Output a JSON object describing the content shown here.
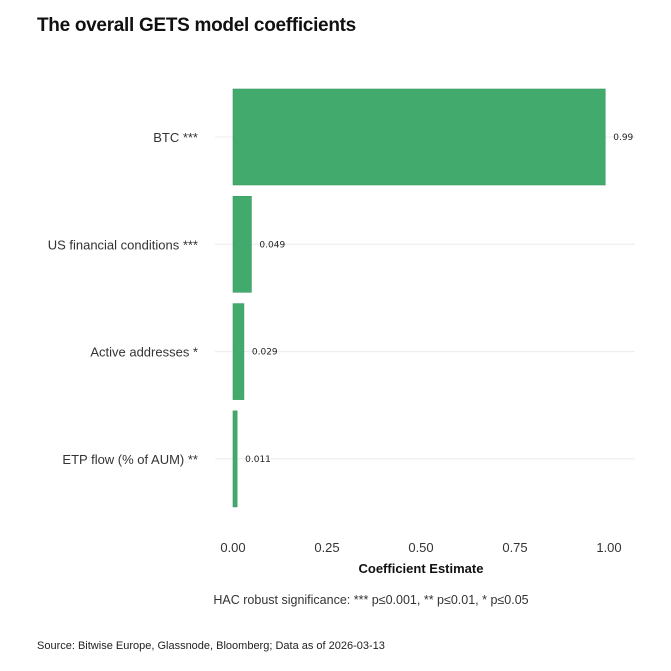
{
  "title": "The overall GETS model coefficients",
  "source": "Source: Bitwise Europe, Glassnode, Bloomberg; Data as of 2026-03-13",
  "chart_data": {
    "type": "bar",
    "orientation": "horizontal",
    "title": "The overall GETS model coefficients",
    "categories": [
      "BTC ***",
      "US financial conditions ***",
      "Active addresses *",
      "ETP flow (% of AUM) **"
    ],
    "values": [
      0.99,
      0.049,
      0.029,
      0.011
    ],
    "data_labels": [
      "0.99",
      "0.049",
      "0.029",
      "0.011"
    ],
    "xlabel": "Coefficient Estimate",
    "ylabel": "",
    "xlim": [
      0,
      1.0
    ],
    "xticks": [
      "0.00",
      "0.25",
      "0.50",
      "0.75",
      "1.00"
    ],
    "note": "HAC robust significance: *** p≤0.001, ** p≤0.01, * p≤0.05",
    "grid": "horizontal at categories",
    "bar_color": "#43aa6e"
  }
}
